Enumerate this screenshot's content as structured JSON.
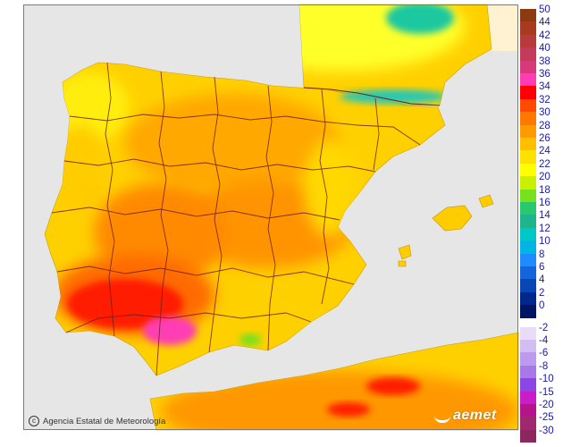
{
  "legend": {
    "positive": [
      {
        "label": "50",
        "color": "#8c3a10"
      },
      {
        "label": "44",
        "color": "#a83a20"
      },
      {
        "label": "42",
        "color": "#b83a3a"
      },
      {
        "label": "40",
        "color": "#c43a5a"
      },
      {
        "label": "38",
        "color": "#d63a78"
      },
      {
        "label": "36",
        "color": "#ff3cb4"
      },
      {
        "label": "34",
        "color": "#ff0000"
      },
      {
        "label": "32",
        "color": "#ff4a00"
      },
      {
        "label": "30",
        "color": "#ff7800"
      },
      {
        "label": "28",
        "color": "#ff9a00"
      },
      {
        "label": "26",
        "color": "#ffbe00"
      },
      {
        "label": "24",
        "color": "#ffe100"
      },
      {
        "label": "22",
        "color": "#ffff00"
      },
      {
        "label": "20",
        "color": "#c8f000"
      },
      {
        "label": "18",
        "color": "#78e11e"
      },
      {
        "label": "16",
        "color": "#28c86e"
      },
      {
        "label": "14",
        "color": "#1eb48c"
      },
      {
        "label": "12",
        "color": "#00c8c8"
      },
      {
        "label": "10",
        "color": "#00b4e6"
      },
      {
        "label": "8",
        "color": "#1e8cff"
      },
      {
        "label": "6",
        "color": "#1464dc"
      },
      {
        "label": "4",
        "color": "#0a46b4"
      },
      {
        "label": "2",
        "color": "#00288c"
      },
      {
        "label": "0",
        "color": "#001464"
      }
    ],
    "negative": [
      {
        "label": "-2",
        "color": "#e8dcf8"
      },
      {
        "label": "-4",
        "color": "#d2bef2"
      },
      {
        "label": "-6",
        "color": "#bc9aee"
      },
      {
        "label": "-8",
        "color": "#a678e8"
      },
      {
        "label": "-10",
        "color": "#8c46e6"
      },
      {
        "label": "-15",
        "color": "#c81ec8"
      },
      {
        "label": "-20",
        "color": "#b4148c"
      },
      {
        "label": "-25",
        "color": "#a0286e"
      },
      {
        "label": "-30",
        "color": "#8c2860"
      }
    ]
  },
  "credit": "Agencia Estatal de Meteorología",
  "logo": "aemet"
}
